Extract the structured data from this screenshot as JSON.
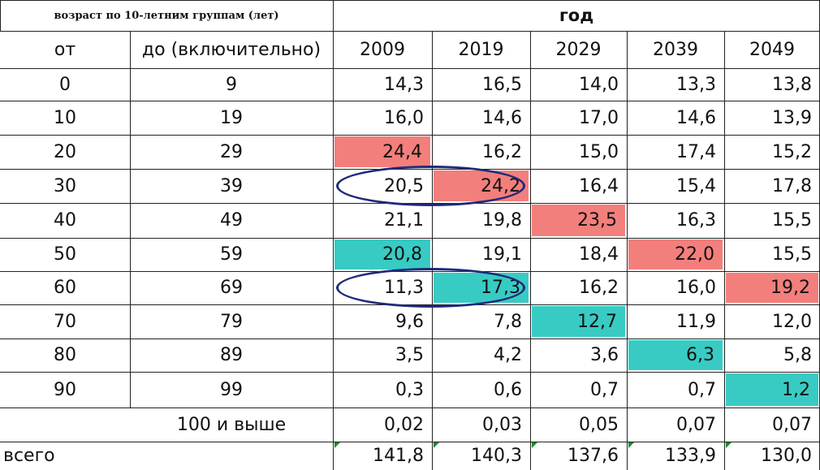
{
  "header": {
    "age_group_title": "возраст по 10-летним группам (лет)",
    "year_title": "год",
    "from_label": "от",
    "to_label": "до (включительно)",
    "years": [
      "2009",
      "2019",
      "2029",
      "2039",
      "2049"
    ]
  },
  "rows": [
    {
      "from": "0",
      "to": "9",
      "values": [
        "14,3",
        "16,5",
        "14,0",
        "13,3",
        "13,8"
      ]
    },
    {
      "from": "10",
      "to": "19",
      "values": [
        "16,0",
        "14,6",
        "17,0",
        "14,6",
        "13,9"
      ]
    },
    {
      "from": "20",
      "to": "29",
      "values": [
        "24,4",
        "16,2",
        "15,0",
        "17,4",
        "15,2"
      ]
    },
    {
      "from": "30",
      "to": "39",
      "values": [
        "20,5",
        "24,2",
        "16,4",
        "15,4",
        "17,8"
      ]
    },
    {
      "from": "40",
      "to": "49",
      "values": [
        "21,1",
        "19,8",
        "23,5",
        "16,3",
        "15,5"
      ]
    },
    {
      "from": "50",
      "to": "59",
      "values": [
        "20,8",
        "19,1",
        "18,4",
        "22,0",
        "15,5"
      ]
    },
    {
      "from": "60",
      "to": "69",
      "values": [
        "11,3",
        "17,3",
        "16,2",
        "16,0",
        "19,2"
      ]
    },
    {
      "from": "70",
      "to": "79",
      "values": [
        "9,6",
        "7,8",
        "12,7",
        "11,9",
        "12,0"
      ]
    },
    {
      "from": "80",
      "to": "89",
      "values": [
        "3,5",
        "4,2",
        "3,6",
        "6,3",
        "5,8"
      ]
    },
    {
      "from": "90",
      "to": "99",
      "values": [
        "0,3",
        "0,6",
        "0,7",
        "0,7",
        "1,2"
      ]
    }
  ],
  "over100": {
    "label": "100 и выше",
    "values": [
      "0,02",
      "0,03",
      "0,05",
      "0,07",
      "0,07"
    ]
  },
  "total": {
    "label": "всего",
    "values": [
      "141,8",
      "140,3",
      "137,6",
      "133,9",
      "130,0"
    ]
  },
  "highlights": {
    "red": [
      [
        2,
        0
      ],
      [
        3,
        1
      ],
      [
        4,
        2
      ],
      [
        5,
        3
      ],
      [
        6,
        4
      ]
    ],
    "teal": [
      [
        5,
        0
      ],
      [
        6,
        1
      ],
      [
        7,
        2
      ],
      [
        8,
        3
      ],
      [
        9,
        4
      ]
    ]
  },
  "colors": {
    "red": "#f37f7c",
    "teal": "#38cbc4",
    "ellipse": "#1f2a7a",
    "corner_tick": "#1a8a2a"
  },
  "circled_rows": [
    3,
    6
  ]
}
